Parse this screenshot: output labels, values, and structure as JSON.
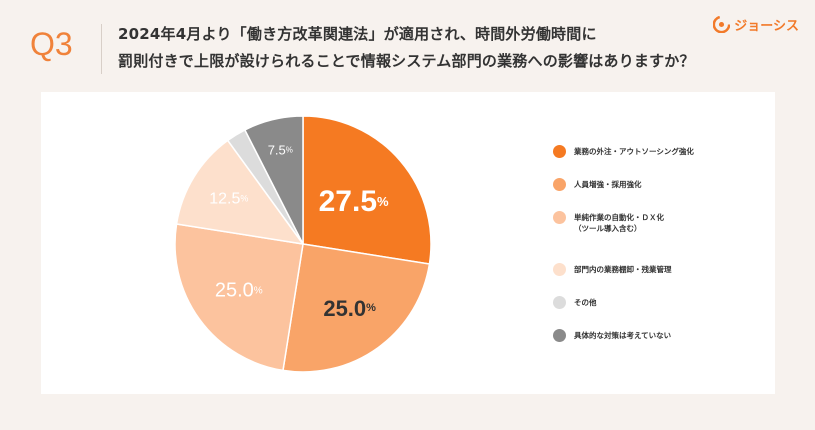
{
  "header": {
    "question_number": "Q3",
    "question_text": "2024年4月より「働き方改革関連法」が適用され、時間外労働時間に\n罰則付きで上限が設けられることで情報システム部門の業務への影響はありますか？",
    "brand_name": "ジョーシス"
  },
  "colors": {
    "accent": "#f0823a",
    "background": "#f7f2ee",
    "card": "#ffffff"
  },
  "chart_data": {
    "type": "pie",
    "title": "",
    "unit": "%",
    "legend_position": "right",
    "slices": [
      {
        "label": "業務の外注・アウトソーシング強化",
        "value": 27.5,
        "display": "27.5",
        "color": "#f57a22"
      },
      {
        "label": "人員増強・採用強化",
        "value": 25.0,
        "display": "25.0",
        "color": "#f9a468"
      },
      {
        "label": "単純作業の自動化・ＤＸ化\n（ツール導入含む）",
        "value": 25.0,
        "display": "25.0",
        "color": "#fcc39e"
      },
      {
        "label": "部門内の業務棚卸・残業管理",
        "value": 12.5,
        "display": "12.5",
        "color": "#fde0cc"
      },
      {
        "label": "その他",
        "value": 2.5,
        "display": "",
        "color": "#dcdcdc"
      },
      {
        "label": "具体的な対策は考えていない",
        "value": 7.5,
        "display": "7.5",
        "color": "#8a8a8a"
      }
    ]
  }
}
